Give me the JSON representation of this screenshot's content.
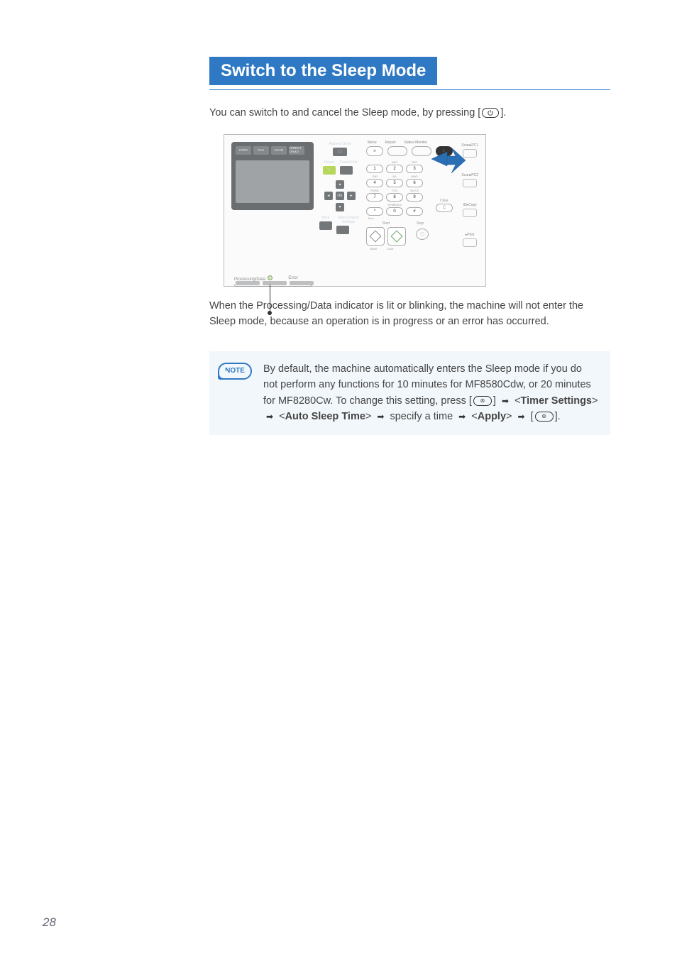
{
  "page": {
    "title": "Switch to the Sleep Mode",
    "intro_pre": "You can switch to and cancel the Sleep mode, by pressing [",
    "intro_post": "].",
    "callout_text": "When the Processing/Data indicator is lit or blinking, the machine will not enter the Sleep mode, because an operation is in progress or an error has occurred.",
    "page_number": "28"
  },
  "note": {
    "badge": "NOTE",
    "line1": "By default, the machine automatically enters the Sleep mode if you do not perform any functions for 10 minutes for MF8580Cdw, or 20 minutes for MF8280Cw. To change this setting, press [",
    "timer_settings": "Timer Settings",
    "auto_sleep": "Auto Sleep Time",
    "specify": " specify a time ",
    "apply": "Apply",
    "arrow": "➡",
    "lt": "<",
    "gt": ">",
    "lbr": "[",
    "rbr": "]",
    "menu_char": "⊛",
    "end": "."
  },
  "panel": {
    "tabs": [
      "COPY",
      "FAX",
      "SCAN",
      "DIRECT PRINT"
    ],
    "mid": {
      "addr": "Address Book",
      "reset": "Reset",
      "coded": "Coded Dial",
      "ok": "OK",
      "back": "Back",
      "select": "Select Paper/ Settings"
    },
    "top_labels": [
      "Menu",
      "Report",
      "Status Monitor",
      "Energy Saver"
    ],
    "num_sup": [
      "",
      "ABC",
      "DEF",
      "GHI",
      "JKL",
      "MNO",
      "PQRS",
      "TUV",
      "WXYZ",
      "",
      "SYMBOLS",
      ""
    ],
    "nums": [
      "1",
      "2",
      "3",
      "4",
      "5",
      "6",
      "7",
      "8",
      "9",
      "*",
      "0",
      "#"
    ],
    "tone": "Tone",
    "clear": "Clear",
    "c": "C",
    "start": "Start",
    "bw": "B&W",
    "color": "Color",
    "stop": "Stop",
    "far": [
      "Scan▸PC1",
      "Scan▸PC2",
      "ID▸Copy",
      "▸Print"
    ],
    "foot_l": "Processing/Data",
    "foot_r": "Error"
  },
  "colors": {
    "accent": "#2f79c4",
    "panel_border": "#bbbbbb",
    "screen_bg": "#6a6e71",
    "note_bg": "#f2f7fb",
    "arrow_fill": "#2a6fb3"
  }
}
